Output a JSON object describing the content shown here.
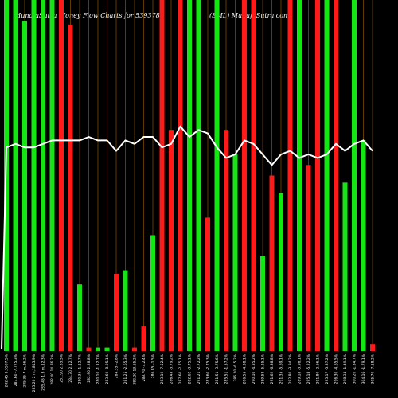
{
  "chart_data": {
    "type": "bar",
    "title": "MunafaSutra  Money Flow  Charts for 539378",
    "subtitle": "(SML) MunafaSutra.com",
    "ylim": [
      0,
      100
    ],
    "grid": true,
    "colors": {
      "green": "#14e614",
      "red": "#ff1a1a",
      "grid": "#7a4a00",
      "line": "#ffffff",
      "background": "#000000"
    },
    "categories": [
      "282.45 3.5507.5%",
      "283.60 -7.775.3%",
      "285.35 7 m,26.2%",
      "285.20 2 m,1845.9%",
      "285.45 1.3 m,12.3%",
      "282.40 14.76.2%",
      "281.90 2.85.5%",
      "284.30 2.12.7%",
      "280.35 -1.12.7%",
      "282.90 2.28.8%",
      "280.10 -1.12.7%",
      "283.60 -8.95.1%",
      "284.55 -2.8%",
      "281.25 -2.65.3%",
      "282.20 13.65.2%",
      "283.70 -3.2.4%",
      "286.85 -1.5%",
      "283.10 -7.52.4%",
      "286.45 -3.79.2%",
      "287.60 -2.75.1%",
      "282.62 -3.75.1%",
      "291.21 -2.72.2%",
      "283.60 -2.75.3%",
      "281.51 -3.75.6%",
      "285.51 -1.57.2%",
      "286.20 -6.5.2%",
      "286.55 -4.38.1%",
      "290.10 -4.85.2%",
      "289.58 -5.25.1%",
      "291.62 -6.38.8%",
      "291.35 -5.69.1%",
      "292.80 -3.94.2%",
      "289.18 -3.98.1%",
      "295.18 -5.22.2%",
      "291.80 -2.66.1%",
      "295.17 -5.87.2%",
      "296.30 -4.65.5%",
      "298.34 -1.49.1%",
      "300.20 -1.54.7%",
      "304.16 -1.79.1%",
      "305.70 -7.18.2%"
    ],
    "bar_colors": [
      "green",
      "green",
      "green",
      "green",
      "green",
      "green",
      "red",
      "red",
      "green",
      "red",
      "green",
      "green",
      "red",
      "green",
      "red",
      "red",
      "green",
      "red",
      "red",
      "red",
      "green",
      "green",
      "red",
      "green",
      "red",
      "green",
      "red",
      "red",
      "green",
      "red",
      "green",
      "red",
      "green",
      "red",
      "red",
      "green",
      "red",
      "green",
      "green",
      "green",
      "red"
    ],
    "values": [
      100,
      100,
      94,
      100,
      100,
      100,
      100,
      93,
      19,
      1,
      1,
      1,
      22,
      23,
      1,
      7,
      33,
      100,
      63,
      100,
      100,
      100,
      38,
      100,
      63,
      56,
      100,
      100,
      27,
      50,
      45,
      100,
      100,
      53,
      100,
      100,
      100,
      48,
      100,
      60,
      2
    ],
    "line_values": [
      58,
      59,
      58,
      58,
      59,
      60,
      60,
      60,
      60,
      61,
      60,
      60,
      57,
      60,
      59,
      61,
      61,
      58,
      59,
      64,
      61,
      63,
      62,
      58,
      55,
      56,
      60,
      59,
      56,
      53,
      56,
      57,
      55,
      56,
      55,
      56,
      59,
      57,
      59,
      60,
      57
    ]
  }
}
